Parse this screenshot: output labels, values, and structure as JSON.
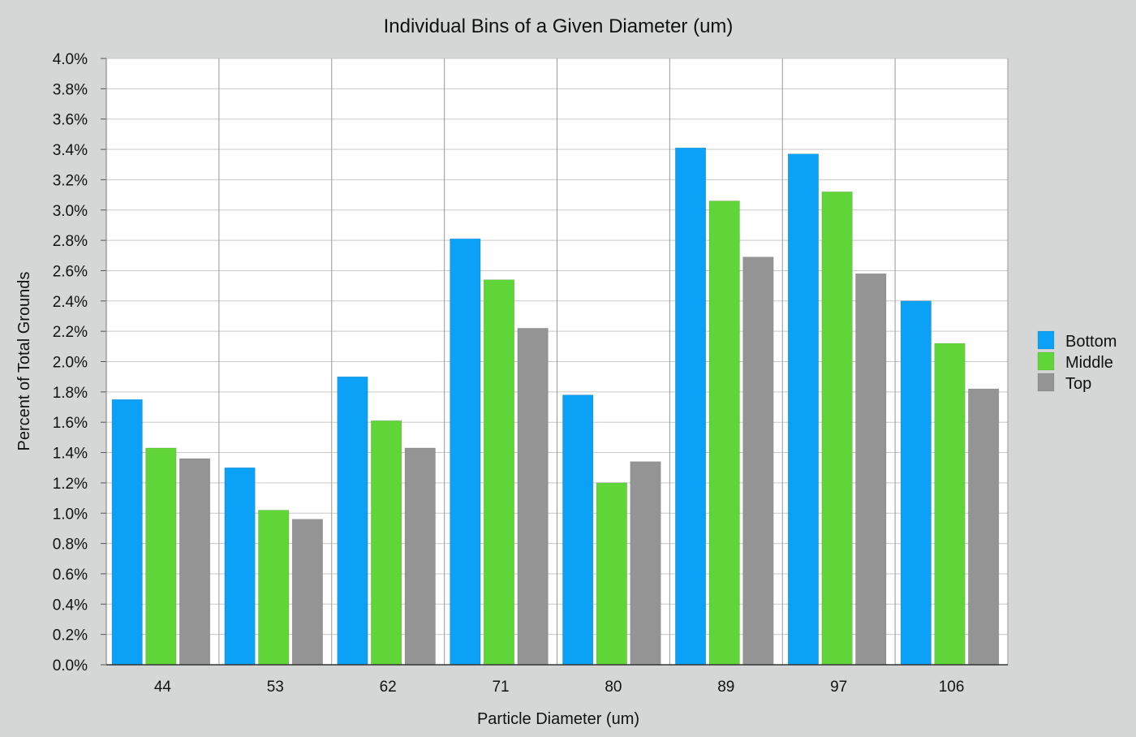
{
  "chart_data": {
    "type": "bar",
    "title": "Individual Bins of a Given Diameter (um)",
    "xlabel": "Particle Diameter (um)",
    "ylabel": "Percent of Total Grounds",
    "categories": [
      "44",
      "53",
      "62",
      "71",
      "80",
      "89",
      "97",
      "106"
    ],
    "series": [
      {
        "name": "Bottom",
        "color": "#0aa1f7",
        "values": [
          1.75,
          1.3,
          1.9,
          2.81,
          1.78,
          3.41,
          3.37,
          2.4
        ]
      },
      {
        "name": "Middle",
        "color": "#5fd537",
        "values": [
          1.43,
          1.02,
          1.61,
          2.54,
          1.2,
          3.06,
          3.12,
          2.12
        ]
      },
      {
        "name": "Top",
        "color": "#949494",
        "values": [
          1.36,
          0.96,
          1.43,
          2.22,
          1.34,
          2.69,
          2.58,
          1.82
        ]
      }
    ],
    "ylim": [
      0,
      4.0
    ],
    "ytick_step": 0.2,
    "y_tick_labels": [
      "0.0%",
      "0.2%",
      "0.4%",
      "0.6%",
      "0.8%",
      "1.0%",
      "1.2%",
      "1.4%",
      "1.6%",
      "1.8%",
      "2.0%",
      "2.2%",
      "2.4%",
      "2.6%",
      "2.8%",
      "3.0%",
      "3.2%",
      "3.4%",
      "3.6%",
      "3.8%",
      "4.0%"
    ],
    "grid": true,
    "legend_position": "right"
  }
}
